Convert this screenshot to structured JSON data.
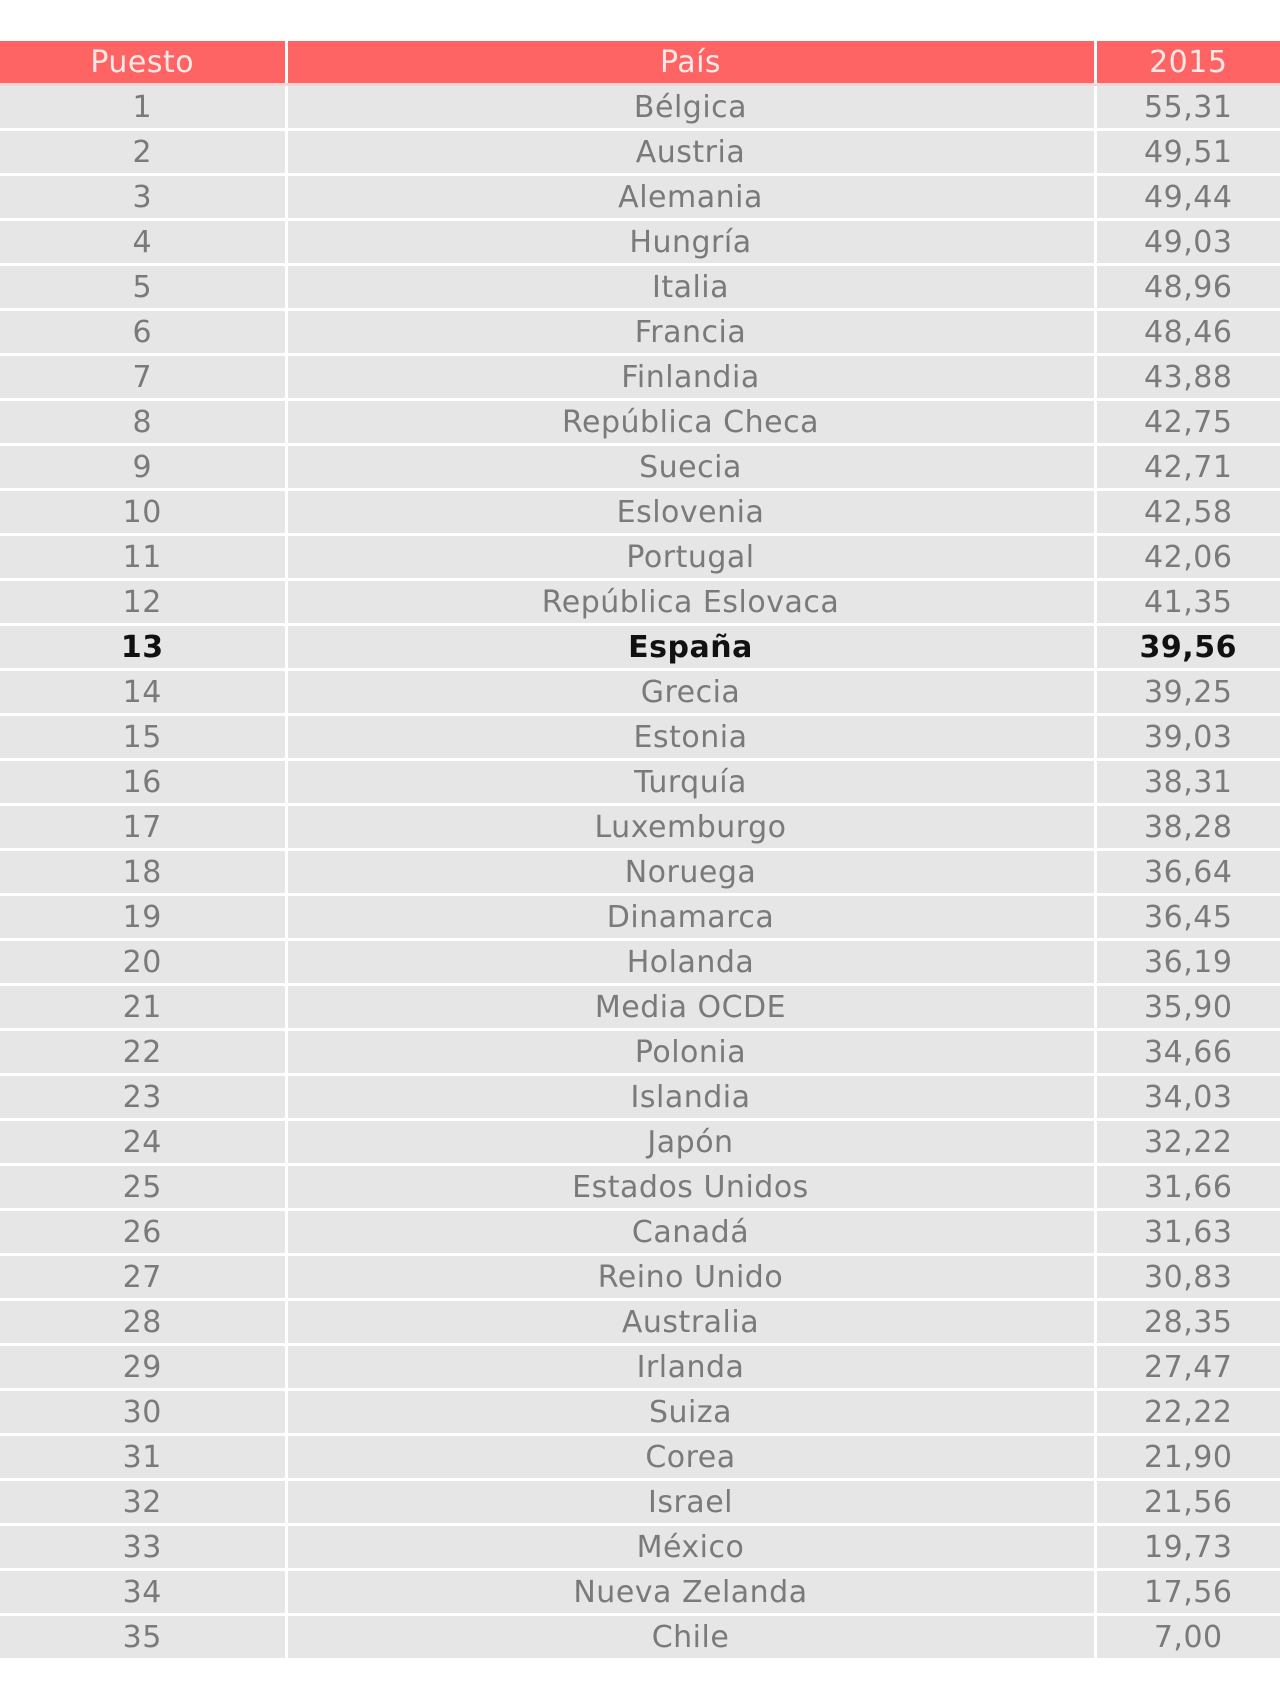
{
  "colors": {
    "header_bg": "#fe6464",
    "row_bg": "#e6e6e6",
    "text": "#7a7a7a",
    "highlight_text": "#111111"
  },
  "table": {
    "headers": [
      "Puesto",
      "País",
      "2015"
    ],
    "highlight_rank": "13",
    "rows": [
      [
        "1",
        "Bélgica",
        "55,31"
      ],
      [
        "2",
        "Austria",
        "49,51"
      ],
      [
        "3",
        "Alemania",
        "49,44"
      ],
      [
        "4",
        "Hungría",
        "49,03"
      ],
      [
        "5",
        "Italia",
        "48,96"
      ],
      [
        "6",
        "Francia",
        "48,46"
      ],
      [
        "7",
        "Finlandia",
        "43,88"
      ],
      [
        "8",
        "República Checa",
        "42,75"
      ],
      [
        "9",
        "Suecia",
        "42,71"
      ],
      [
        "10",
        "Eslovenia",
        "42,58"
      ],
      [
        "11",
        "Portugal",
        "42,06"
      ],
      [
        "12",
        "República Eslovaca",
        "41,35"
      ],
      [
        "13",
        "España",
        "39,56"
      ],
      [
        "14",
        "Grecia",
        "39,25"
      ],
      [
        "15",
        "Estonia",
        "39,03"
      ],
      [
        "16",
        "Turquía",
        "38,31"
      ],
      [
        "17",
        "Luxemburgo",
        "38,28"
      ],
      [
        "18",
        "Noruega",
        "36,64"
      ],
      [
        "19",
        "Dinamarca",
        "36,45"
      ],
      [
        "20",
        "Holanda",
        "36,19"
      ],
      [
        "21",
        "Media OCDE",
        "35,90"
      ],
      [
        "22",
        "Polonia",
        "34,66"
      ],
      [
        "23",
        "Islandia",
        "34,03"
      ],
      [
        "24",
        "Japón",
        "32,22"
      ],
      [
        "25",
        "Estados Unidos",
        "31,66"
      ],
      [
        "26",
        "Canadá",
        "31,63"
      ],
      [
        "27",
        "Reino Unido",
        "30,83"
      ],
      [
        "28",
        "Australia",
        "28,35"
      ],
      [
        "29",
        "Irlanda",
        "27,47"
      ],
      [
        "30",
        "Suiza",
        "22,22"
      ],
      [
        "31",
        "Corea",
        "21,90"
      ],
      [
        "32",
        "Israel",
        "21,56"
      ],
      [
        "33",
        "México",
        "19,73"
      ],
      [
        "34",
        "Nueva Zelanda",
        "17,56"
      ],
      [
        "35",
        "Chile",
        "7,00"
      ]
    ]
  }
}
